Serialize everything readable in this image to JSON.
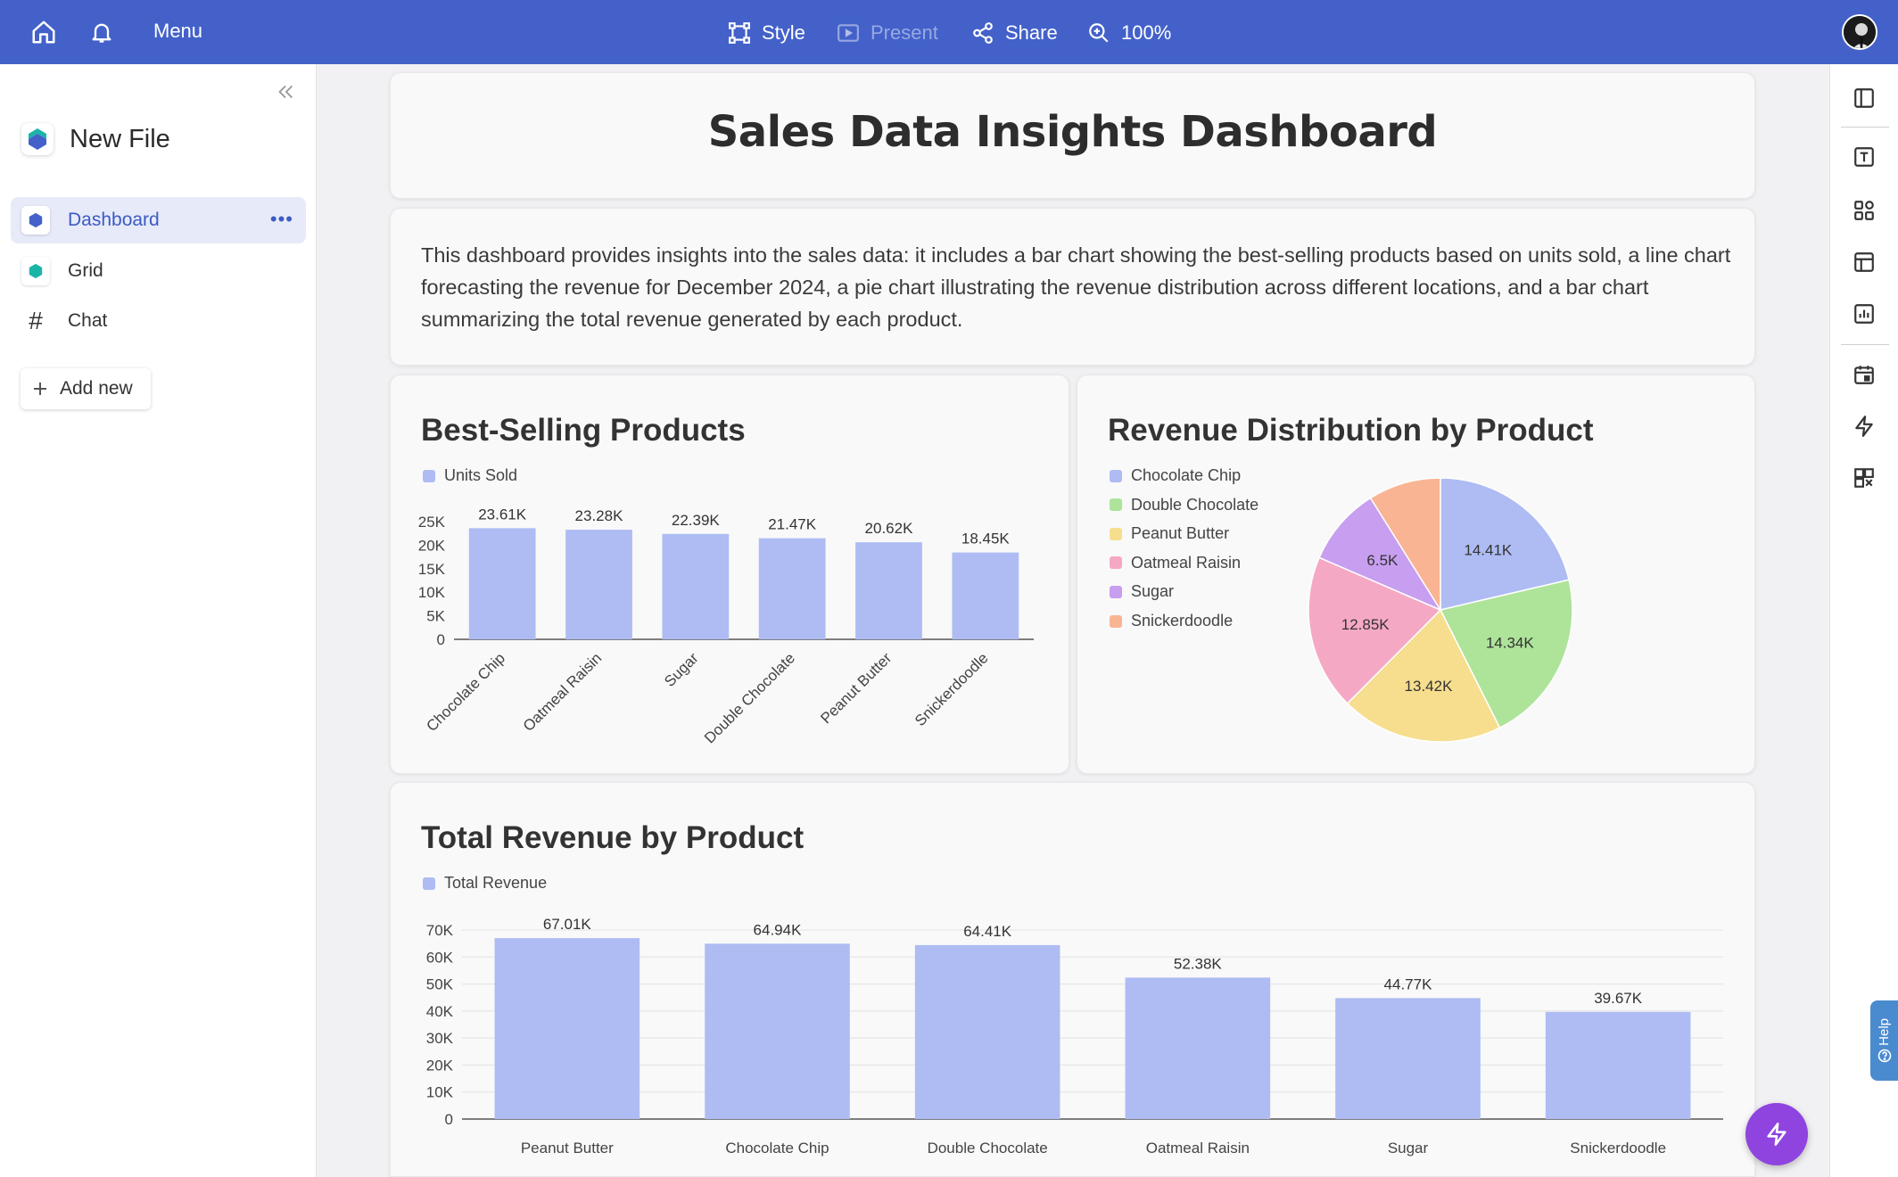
{
  "topbar": {
    "menu_label": "Menu",
    "style_label": "Style",
    "present_label": "Present",
    "share_label": "Share",
    "zoom_label": "100%"
  },
  "sidebar": {
    "file_name": "New File",
    "items": [
      {
        "label": "Dashboard",
        "icon": "hexagon-icon",
        "color": "#4361c9"
      },
      {
        "label": "Grid",
        "icon": "hexagon-icon",
        "color": "#1bb5a8"
      },
      {
        "label": "Chat",
        "icon": "hash-icon"
      }
    ],
    "add_new_label": "Add new"
  },
  "dashboard": {
    "title": "Sales Data Insights Dashboard",
    "description": "This dashboard provides insights into the sales data: it includes a bar chart showing the best-selling products based on units sold, a line chart forecasting the revenue for December 2024, a pie chart illustrating the revenue distribution across different locations, and a bar chart summarizing the total revenue generated by each product."
  },
  "colors": {
    "accent": "#4361c9",
    "bar": "#aebcf3",
    "fab": "#8f44e0"
  },
  "help_label": "Help",
  "chart_data": [
    {
      "type": "bar",
      "title": "Best-Selling Products",
      "series": [
        {
          "name": "Units Sold",
          "values": [
            23610,
            23280,
            22390,
            21470,
            20620,
            18450
          ]
        }
      ],
      "categories": [
        "Chocolate Chip",
        "Oatmeal Raisin",
        "Sugar",
        "Double Chocolate",
        "Peanut Butter",
        "Snickerdoodle"
      ],
      "data_labels": [
        "23.61K",
        "23.28K",
        "22.39K",
        "21.47K",
        "20.62K",
        "18.45K"
      ],
      "ylim": [
        0,
        25000
      ],
      "yticks": [
        "0",
        "5K",
        "10K",
        "15K",
        "20K",
        "25K"
      ],
      "legend": "top-left",
      "grid": false
    },
    {
      "type": "pie",
      "title": "Revenue Distribution by Product",
      "categories": [
        "Chocolate Chip",
        "Double Chocolate",
        "Peanut Butter",
        "Oatmeal Raisin",
        "Sugar",
        "Snickerdoodle"
      ],
      "values": [
        14410,
        14340,
        13420,
        12850,
        6500,
        6000
      ],
      "data_labels": [
        "14.41K",
        "14.34K",
        "13.42K",
        "12.85K",
        "6.5K",
        ""
      ],
      "colors": [
        "#aebcf3",
        "#aee39a",
        "#f7de8e",
        "#f5a8c4",
        "#c79ef0",
        "#f9b493"
      ],
      "legend": "left"
    },
    {
      "type": "bar",
      "title": "Total Revenue by Product",
      "series": [
        {
          "name": "Total Revenue",
          "values": [
            67010,
            64940,
            64410,
            52380,
            44770,
            39670
          ]
        }
      ],
      "categories": [
        "Peanut Butter",
        "Chocolate Chip",
        "Double Chocolate",
        "Oatmeal Raisin",
        "Sugar",
        "Snickerdoodle"
      ],
      "data_labels": [
        "67.01K",
        "64.94K",
        "64.41K",
        "52.38K",
        "44.77K",
        "39.67K"
      ],
      "ylim": [
        0,
        70000
      ],
      "yticks": [
        "0",
        "10K",
        "20K",
        "30K",
        "40K",
        "50K",
        "60K",
        "70K"
      ],
      "legend": "top-left",
      "grid": true
    }
  ]
}
